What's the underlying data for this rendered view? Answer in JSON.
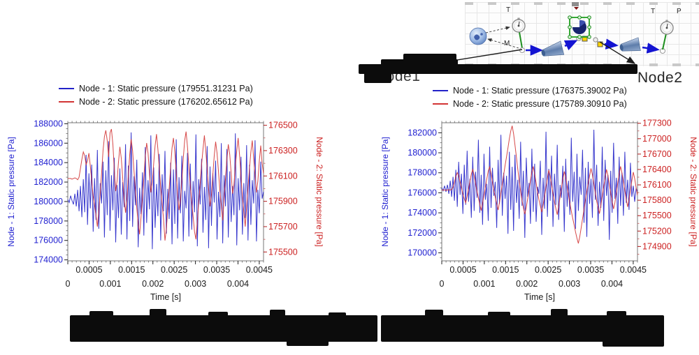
{
  "diagram": {
    "node1_label": "Node1",
    "node2_label": "Node2",
    "labels": {
      "t1": "T",
      "m": "M",
      "t2": "T",
      "p": "P"
    }
  },
  "chart_data": [
    {
      "type": "line",
      "x": {
        "label": "Time [s]",
        "min": 0,
        "max": 0.0046,
        "minor_step": 0.0001,
        "ticks_upper": [
          "0.0005",
          "0.0015",
          "0.0025",
          "0.0035",
          "0.0045"
        ],
        "ticks_lower": [
          "0",
          "0.001",
          "0.002",
          "0.003",
          "0.004"
        ]
      },
      "y_left": {
        "title": "Node - 1: Static pressure [Pa]",
        "color": "#1f1fd0",
        "min": 173900,
        "max": 188100,
        "ticks": [
          174000,
          176000,
          178000,
          180000,
          182000,
          184000,
          186000,
          188000
        ]
      },
      "y_right": {
        "title": "Node - 2: Static pressure [Pa]",
        "color": "#cc2222",
        "min": 175430,
        "max": 176520,
        "ticks": [
          175500,
          175700,
          175900,
          176100,
          176300,
          176500
        ]
      },
      "series": [
        {
          "name": "Node - 1: Static pressure (179551.31231 Pa)",
          "axis": "left",
          "color": "#2222c8",
          "values": [
            180200,
            179900,
            180600,
            180100,
            179700,
            180800,
            179500,
            181200,
            179000,
            181600,
            178400,
            182300,
            178900,
            184800,
            177600,
            182900,
            179300,
            183800,
            176900,
            182400,
            178100,
            185300,
            177200,
            181900,
            179800,
            184100,
            176300,
            183200,
            178600,
            186200,
            177000,
            182700,
            179100,
            184500,
            175800,
            181700,
            178300,
            183400,
            176600,
            182000,
            179400,
            185900,
            176100,
            183700,
            178000,
            187100,
            177400,
            182600,
            179600,
            184300,
            175300,
            181400,
            178700,
            183000,
            176500,
            185600,
            177800,
            182200,
            179200,
            186800,
            175100,
            183500,
            177300,
            181800,
            178500,
            184900,
            176000,
            182800,
            179000,
            185200,
            176700,
            181300,
            178200,
            184000,
            175600,
            183300,
            177700,
            186400,
            176200,
            182500,
            178800,
            184700,
            175900,
            181100,
            179300,
            185000,
            176400,
            183900,
            177100,
            182100,
            178900,
            186900,
            175400,
            182300,
            179700,
            184400,
            176800,
            181500,
            178100,
            185700,
            175200,
            183600,
            177500,
            182900,
            179900,
            184200,
            176100,
            181000,
            178400,
            186000,
            175700,
            182700,
            179500,
            185400,
            176300,
            183100,
            177900,
            181600,
            178600,
            187000,
            175500,
            182400,
            179100,
            184600,
            176600,
            181900,
            178300,
            185800,
            176000,
            183800,
            177600,
            182200,
            179800,
            186300,
            175900,
            181200,
            178800,
            184100,
            180300,
            181000
          ]
        },
        {
          "name": "Node - 2: Static pressure (176202.65612 Pa)",
          "axis": "right",
          "color": "#d23434",
          "values": [
            176080,
            176080,
            176080,
            176075,
            176080,
            176085,
            176080,
            176070,
            176090,
            176160,
            176230,
            176290,
            176260,
            176190,
            176220,
            176280,
            176180,
            176060,
            175940,
            175870,
            175790,
            175700,
            175820,
            175960,
            176120,
            176300,
            176410,
            176460,
            176380,
            176250,
            176440,
            176470,
            176350,
            176150,
            175980,
            176060,
            176210,
            176330,
            176240,
            176080,
            175920,
            175810,
            175920,
            176100,
            176270,
            176390,
            176300,
            176140,
            175990,
            175850,
            175720,
            175640,
            175770,
            175930,
            176090,
            176250,
            176360,
            176280,
            176120,
            175970,
            176050,
            176200,
            176340,
            176430,
            176310,
            176160,
            176010,
            175880,
            175760,
            175590,
            175680,
            175840,
            176000,
            176170,
            176320,
            176400,
            176290,
            176130,
            175950,
            175830,
            175910,
            176070,
            176240,
            176380,
            176450,
            176330,
            176180,
            176020,
            175900,
            175780,
            175660,
            175600,
            175740,
            175890,
            176040,
            176190,
            176310,
            176420,
            176300,
            176150,
            176000,
            175860,
            175950,
            176110,
            176260,
            176370,
            176280,
            176140,
            175980,
            175870,
            175750,
            175930,
            176080,
            176230,
            176350,
            176270,
            176120,
            175960,
            176030,
            176180,
            176300,
            176400,
            176260,
            176090,
            175940,
            175820,
            175700,
            175850,
            176010,
            176160,
            176290,
            176380,
            176240,
            176100,
            175970,
            176060,
            176220,
            176340,
            176200,
            176120
          ]
        }
      ]
    },
    {
      "type": "line",
      "x": {
        "label": "Time [s]",
        "min": 0,
        "max": 0.0046,
        "minor_step": 0.0001,
        "ticks_upper": [
          "0.0005",
          "0.0015",
          "0.0025",
          "0.0035",
          "0.0045"
        ],
        "ticks_lower": [
          "0",
          "0.001",
          "0.002",
          "0.003",
          "0.004"
        ]
      },
      "y_left": {
        "title": "Node - 1: Static pressure [Pa]",
        "color": "#1f1fd0",
        "min": 169200,
        "max": 183000,
        "ticks": [
          170000,
          172000,
          174000,
          176000,
          178000,
          180000,
          182000
        ]
      },
      "y_right": {
        "title": "Node - 2: Static pressure [Pa]",
        "color": "#cc2222",
        "min": 174620,
        "max": 177310,
        "ticks": [
          174900,
          175200,
          175500,
          175800,
          176100,
          176400,
          176700,
          177000,
          177300
        ]
      },
      "series": [
        {
          "name": "Node - 1: Static pressure (176375.39002 Pa)",
          "axis": "left",
          "color": "#2222c8",
          "values": [
            176500,
            176200,
            176700,
            176100,
            176800,
            175900,
            177200,
            175600,
            177600,
            175200,
            178300,
            174600,
            179100,
            175800,
            177900,
            173900,
            178800,
            174800,
            180200,
            175100,
            177400,
            173500,
            179600,
            174200,
            178100,
            175500,
            181300,
            174000,
            177800,
            172800,
            179900,
            175300,
            176900,
            173200,
            180600,
            174500,
            178500,
            175700,
            177100,
            172500,
            179300,
            174900,
            181800,
            173700,
            178000,
            175400,
            177700,
            171900,
            180100,
            174300,
            178600,
            172200,
            179800,
            175000,
            177300,
            173400,
            181100,
            174700,
            178200,
            171500,
            179500,
            175600,
            177000,
            172900,
            180400,
            174100,
            178900,
            173100,
            176600,
            175900,
            179200,
            171800,
            177500,
            174400,
            182100,
            173600,
            178400,
            175200,
            179700,
            172600,
            177900,
            174800,
            180800,
            173300,
            176800,
            175500,
            178700,
            172100,
            179400,
            174600,
            177200,
            173800,
            181500,
            175100,
            178100,
            172400,
            179900,
            174200,
            177600,
            175800,
            180300,
            173000,
            178500,
            171600,
            179100,
            174900,
            177400,
            173500,
            182300,
            175300,
            178800,
            172700,
            177100,
            174500,
            180600,
            173200,
            179300,
            175700,
            177800,
            171300,
            178200,
            174000,
            181000,
            175400,
            177500,
            172900,
            179600,
            174700,
            178000,
            173700,
            180100,
            175000,
            177300,
            174300,
            179000,
            175600,
            176700,
            175100,
            176400,
            176200
          ]
        },
        {
          "name": "Node - 2: Static pressure (175789.30910 Pa)",
          "axis": "right",
          "color": "#d23434",
          "values": [
            176000,
            176000,
            176000,
            175995,
            176000,
            176005,
            176000,
            176010,
            176050,
            176150,
            176260,
            176340,
            176280,
            176160,
            176040,
            175920,
            175830,
            175750,
            175880,
            176020,
            176170,
            176310,
            176400,
            176290,
            176130,
            175970,
            175850,
            175720,
            175600,
            175740,
            175900,
            176060,
            176220,
            176370,
            176450,
            176320,
            176150,
            175990,
            175860,
            175730,
            175610,
            175760,
            175940,
            176120,
            176300,
            176480,
            176650,
            176820,
            177000,
            177150,
            177250,
            177100,
            176880,
            176640,
            176400,
            176180,
            175980,
            175800,
            175650,
            175530,
            175660,
            175830,
            176010,
            176190,
            176350,
            176460,
            176310,
            176140,
            175960,
            175810,
            175690,
            175570,
            175710,
            175880,
            176060,
            176230,
            176390,
            176270,
            176100,
            175930,
            175770,
            175640,
            175520,
            175680,
            175860,
            176040,
            176210,
            176360,
            176250,
            176080,
            175900,
            175740,
            175590,
            175450,
            175320,
            175180,
            175060,
            174960,
            175090,
            175260,
            175440,
            175620,
            175800,
            175970,
            176130,
            176280,
            176420,
            176300,
            176120,
            175950,
            175790,
            175660,
            175540,
            175700,
            175890,
            176070,
            176240,
            176400,
            176280,
            176110,
            175940,
            175780,
            175630,
            175760,
            175950,
            176140,
            176320,
            176460,
            176330,
            176160,
            175990,
            175820,
            175670,
            175810,
            176000,
            176180,
            176350,
            176220,
            176050,
            175900
          ]
        }
      ]
    }
  ]
}
